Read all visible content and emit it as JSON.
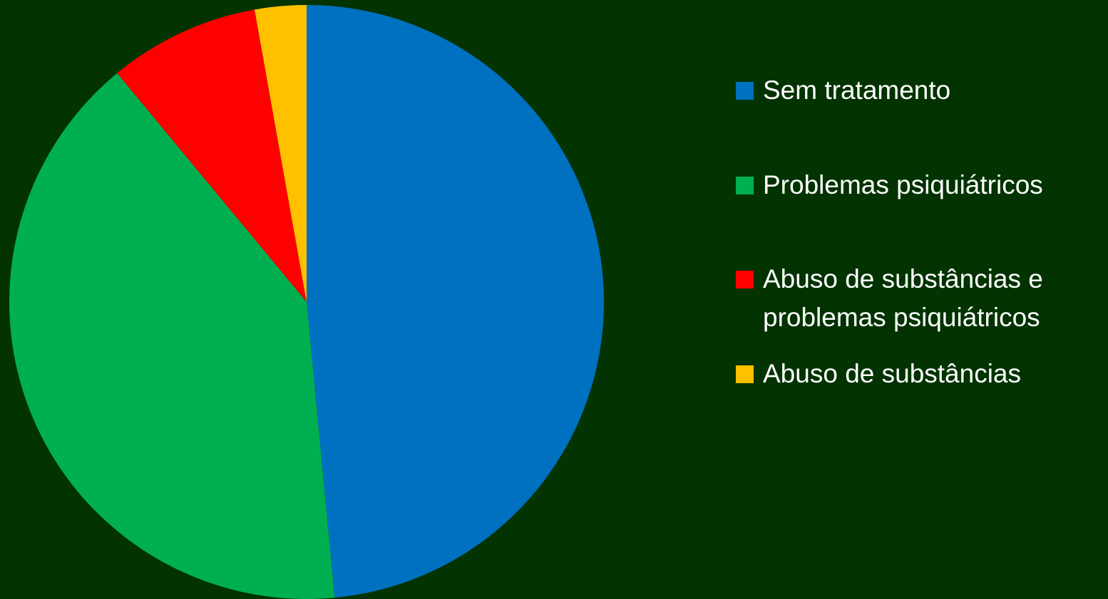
{
  "chart_data": {
    "type": "pie",
    "title": "",
    "slices": [
      {
        "label": "Sem tratamento",
        "value": 48.5,
        "color": "#0070C0"
      },
      {
        "label": "Problemas psiquiátricos",
        "value": 40.5,
        "color": "#00B050"
      },
      {
        "label": "Abuso de substâncias e\nproblemas psiquiátricos",
        "value": 8.2,
        "color": "#FF0000"
      },
      {
        "label": "Abuso de substâncias",
        "value": 2.8,
        "color": "#FFC000"
      }
    ],
    "legend_position": "right"
  },
  "colors": {
    "background": "#023300",
    "text": "#FFFFFF"
  }
}
